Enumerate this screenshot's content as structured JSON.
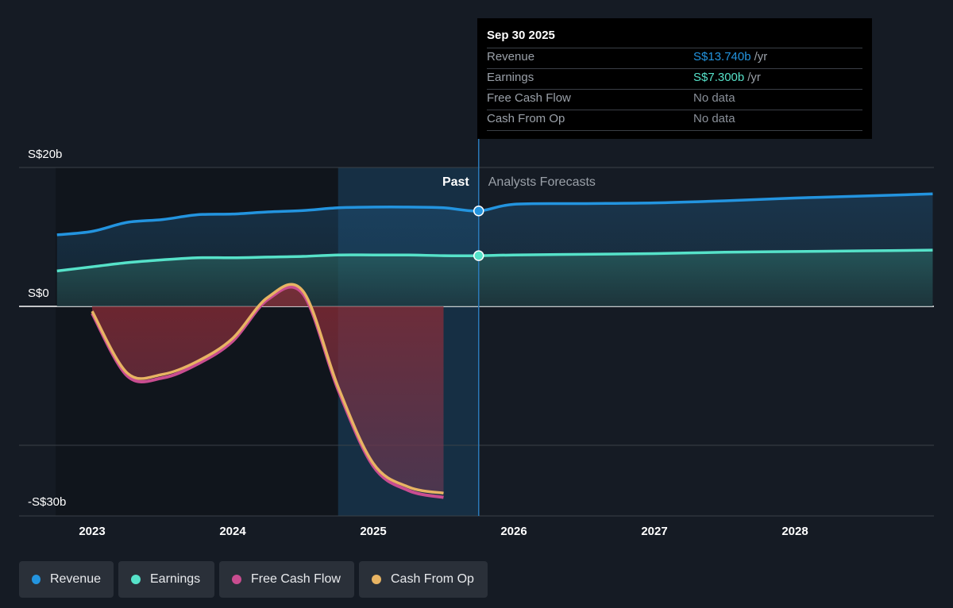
{
  "chart_data": {
    "type": "line",
    "y_tick_labels": [
      "S$20b",
      "S$0",
      "-S$30b"
    ],
    "x_tick_labels": [
      "2023",
      "2024",
      "2025",
      "2026",
      "2027",
      "2028"
    ],
    "ylim": [
      -30,
      20
    ],
    "past_label": "Past",
    "forecast_label": "Analysts Forecasts",
    "series": [
      {
        "name": "Revenue",
        "color": "#2394df",
        "points": [
          [
            2022.75,
            10.3
          ],
          [
            2023.0,
            10.8
          ],
          [
            2023.25,
            12.1
          ],
          [
            2023.5,
            12.5
          ],
          [
            2023.75,
            13.2
          ],
          [
            2024.0,
            13.3
          ],
          [
            2024.25,
            13.6
          ],
          [
            2024.5,
            13.8
          ],
          [
            2024.75,
            14.2
          ],
          [
            2025.0,
            14.3
          ],
          [
            2025.25,
            14.3
          ],
          [
            2025.5,
            14.2
          ],
          [
            2025.75,
            13.74
          ],
          [
            2026.0,
            14.7
          ],
          [
            2026.5,
            14.8
          ],
          [
            2027.0,
            14.9
          ],
          [
            2027.5,
            15.2
          ],
          [
            2028.0,
            15.6
          ],
          [
            2028.5,
            15.9
          ],
          [
            2028.98,
            16.2
          ]
        ]
      },
      {
        "name": "Earnings",
        "color": "#56e2c9",
        "points": [
          [
            2022.75,
            5.1
          ],
          [
            2023.0,
            5.7
          ],
          [
            2023.25,
            6.3
          ],
          [
            2023.5,
            6.7
          ],
          [
            2023.75,
            7.0
          ],
          [
            2024.0,
            7.0
          ],
          [
            2024.25,
            7.1
          ],
          [
            2024.5,
            7.2
          ],
          [
            2024.75,
            7.4
          ],
          [
            2025.0,
            7.4
          ],
          [
            2025.25,
            7.4
          ],
          [
            2025.5,
            7.3
          ],
          [
            2025.75,
            7.3
          ],
          [
            2026.0,
            7.4
          ],
          [
            2026.5,
            7.5
          ],
          [
            2027.0,
            7.6
          ],
          [
            2027.5,
            7.8
          ],
          [
            2028.0,
            7.9
          ],
          [
            2028.5,
            8.0
          ],
          [
            2028.98,
            8.1
          ]
        ]
      },
      {
        "name": "Free Cash Flow",
        "color": "#c94d90",
        "points": [
          [
            2023.0,
            -1.0
          ],
          [
            2023.25,
            -10.0
          ],
          [
            2023.5,
            -10.3
          ],
          [
            2023.75,
            -8.3
          ],
          [
            2024.0,
            -5.0
          ],
          [
            2024.25,
            1.0
          ],
          [
            2024.5,
            1.8
          ],
          [
            2024.75,
            -12.0
          ],
          [
            2025.0,
            -23.0
          ],
          [
            2025.25,
            -26.5
          ],
          [
            2025.5,
            -27.5
          ]
        ]
      },
      {
        "name": "Cash From Op",
        "color": "#e8b463",
        "points": [
          [
            2023.0,
            -0.7
          ],
          [
            2023.25,
            -9.6
          ],
          [
            2023.5,
            -9.8
          ],
          [
            2023.75,
            -7.9
          ],
          [
            2024.0,
            -4.6
          ],
          [
            2024.25,
            1.3
          ],
          [
            2024.5,
            2.2
          ],
          [
            2024.75,
            -11.6
          ],
          [
            2025.0,
            -22.6
          ],
          [
            2025.25,
            -26.0
          ],
          [
            2025.5,
            -26.9
          ]
        ]
      }
    ]
  },
  "tooltip": {
    "date": "Sep 30 2025",
    "rows": [
      {
        "label": "Revenue",
        "value": "S$13.740b",
        "unit": "/yr",
        "color": "#2394df"
      },
      {
        "label": "Earnings",
        "value": "S$7.300b",
        "unit": "/yr",
        "color": "#56e2c9"
      },
      {
        "label": "Free Cash Flow",
        "value": "No data",
        "unit": "",
        "color": "#8a9099"
      },
      {
        "label": "Cash From Op",
        "value": "No data",
        "unit": "",
        "color": "#8a9099"
      }
    ]
  },
  "legend": [
    {
      "label": "Revenue",
      "color": "#2394df"
    },
    {
      "label": "Earnings",
      "color": "#56e2c9"
    },
    {
      "label": "Free Cash Flow",
      "color": "#c94d90"
    },
    {
      "label": "Cash From Op",
      "color": "#e8b463"
    }
  ]
}
